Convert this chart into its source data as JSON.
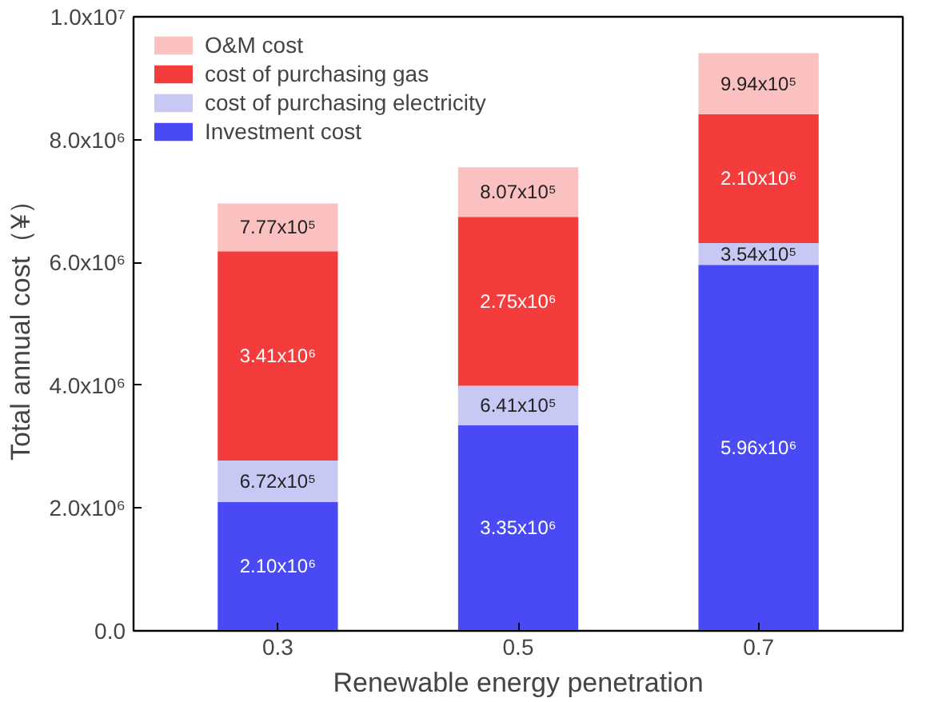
{
  "chart_data": {
    "type": "bar",
    "stacked": true,
    "xlabel": "Renewable energy penetration",
    "ylabel": "Total annual cost（¥）",
    "categories": [
      "0.3",
      "0.5",
      "0.7"
    ],
    "series": [
      {
        "name": "Investment cost",
        "color": "#4a4af5",
        "values": [
          2100000,
          3350000,
          5960000
        ],
        "value_labels": [
          "2.10x10⁶",
          "3.35x10⁶",
          "5.96x10⁶"
        ]
      },
      {
        "name": "cost of purchasing electricity",
        "color": "#c8c8f5",
        "values": [
          672000,
          641000,
          354000
        ],
        "value_labels": [
          "6.72x10⁵",
          "6.41x10⁵",
          "3.54x10⁵"
        ]
      },
      {
        "name": "cost of purchasing gas",
        "color": "#f53c3c",
        "values": [
          3410000,
          2750000,
          2100000
        ],
        "value_labels": [
          "3.41x10⁶",
          "2.75x10⁶",
          "2.10x10⁶"
        ]
      },
      {
        "name": "O&M cost",
        "color": "#fbc0c0",
        "values": [
          777000,
          807000,
          994000
        ],
        "value_labels": [
          "7.77x10⁵",
          "8.07x10⁵",
          "9.94x10⁵"
        ]
      }
    ],
    "ylim": [
      0,
      10000000
    ],
    "yticks": [
      {
        "value": 0,
        "label": "0.0"
      },
      {
        "value": 2000000,
        "label": "2.0x10⁶"
      },
      {
        "value": 4000000,
        "label": "4.0x10⁶"
      },
      {
        "value": 6000000,
        "label": "6.0x10⁶"
      },
      {
        "value": 8000000,
        "label": "8.0x10⁶"
      },
      {
        "value": 10000000,
        "label": "1.0x10⁷"
      }
    ],
    "legend": "top left",
    "grid": false
  }
}
